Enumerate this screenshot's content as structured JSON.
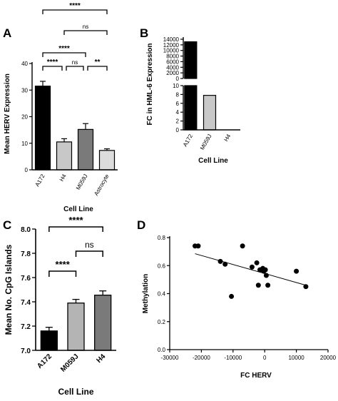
{
  "chart_data": [
    {
      "panel": "A",
      "type": "bar",
      "ylabel": "Mean HERV Expression",
      "xlabel": "Cell Line",
      "categories": [
        "A172",
        "H4",
        "M059J",
        "Astrocyte"
      ],
      "values": [
        31.5,
        10.5,
        15.2,
        7.3
      ],
      "errors": [
        1.8,
        1.2,
        2.2,
        0.6
      ],
      "bar_colors": [
        "#000000",
        "#c8c8c8",
        "#7a7a7a",
        "#dcdcdc"
      ],
      "ylim": [
        0,
        40
      ],
      "yticks": [
        0,
        10,
        20,
        30,
        40
      ],
      "comparisons": [
        {
          "from": 0,
          "to": 1,
          "label": "****"
        },
        {
          "from": 1,
          "to": 2,
          "label": "ns"
        },
        {
          "from": 2,
          "to": 3,
          "label": "**"
        },
        {
          "from": 0,
          "to": 2,
          "label": "****"
        },
        {
          "from": 1,
          "to": 3,
          "label": "ns"
        },
        {
          "from": 0,
          "to": 3,
          "label": "****"
        }
      ]
    },
    {
      "panel": "B",
      "type": "bar",
      "ylabel": "FC in HML-6 Expression",
      "xlabel": "Cell Line",
      "categories": [
        "A172",
        "M059J",
        "H4"
      ],
      "values": [
        13100,
        7.8,
        0
      ],
      "bar_colors": [
        "#000000",
        "#c8c8c8",
        "#ffffff"
      ],
      "broken_axis": true,
      "upper_ylim": [
        0,
        14000
      ],
      "upper_yticks": [
        0,
        2000,
        4000,
        6000,
        8000,
        10000,
        12000,
        14000
      ],
      "lower_ylim": [
        0,
        10
      ],
      "lower_yticks": [
        0,
        2,
        4,
        6,
        8,
        10
      ]
    },
    {
      "panel": "C",
      "type": "bar",
      "ylabel": "Mean No. CpG Islands",
      "xlabel": "Cell Line",
      "categories": [
        "A172",
        "M059J",
        "H4"
      ],
      "values": [
        7.16,
        7.39,
        7.455
      ],
      "errors": [
        0.03,
        0.03,
        0.035
      ],
      "bar_colors": [
        "#000000",
        "#b4b4b4",
        "#7a7a7a"
      ],
      "ylim": [
        7.0,
        8.0
      ],
      "yticks": [
        "7.0",
        "7.2",
        "7.4",
        "7.6",
        "7.8",
        "8.0"
      ],
      "comparisons": [
        {
          "from": 0,
          "to": 1,
          "label": "****"
        },
        {
          "from": 1,
          "to": 2,
          "label": "ns"
        },
        {
          "from": 0,
          "to": 2,
          "label": "****"
        }
      ]
    },
    {
      "panel": "D",
      "type": "scatter",
      "ylabel": "Methylation",
      "xlabel": "FC HERV",
      "xlim": [
        -30000,
        20000
      ],
      "xticks": [
        -30000,
        -20000,
        -10000,
        0,
        10000,
        20000
      ],
      "ylim": [
        0.0,
        0.8
      ],
      "yticks": [
        "0.0",
        "0.2",
        "0.4",
        "0.6",
        "0.8"
      ],
      "points": [
        [
          -22000,
          0.74
        ],
        [
          -21000,
          0.74
        ],
        [
          -14000,
          0.63
        ],
        [
          -12500,
          0.61
        ],
        [
          -7000,
          0.74
        ],
        [
          -10500,
          0.38
        ],
        [
          -4000,
          0.59
        ],
        [
          -2500,
          0.62
        ],
        [
          -1500,
          0.57
        ],
        [
          -600,
          0.58
        ],
        [
          -300,
          0.56
        ],
        [
          200,
          0.57
        ],
        [
          500,
          0.53
        ],
        [
          -2000,
          0.46
        ],
        [
          1000,
          0.46
        ],
        [
          10000,
          0.56
        ],
        [
          13000,
          0.45
        ]
      ],
      "trendline": [
        [
          -22000,
          0.685
        ],
        [
          13000,
          0.46
        ]
      ]
    }
  ]
}
